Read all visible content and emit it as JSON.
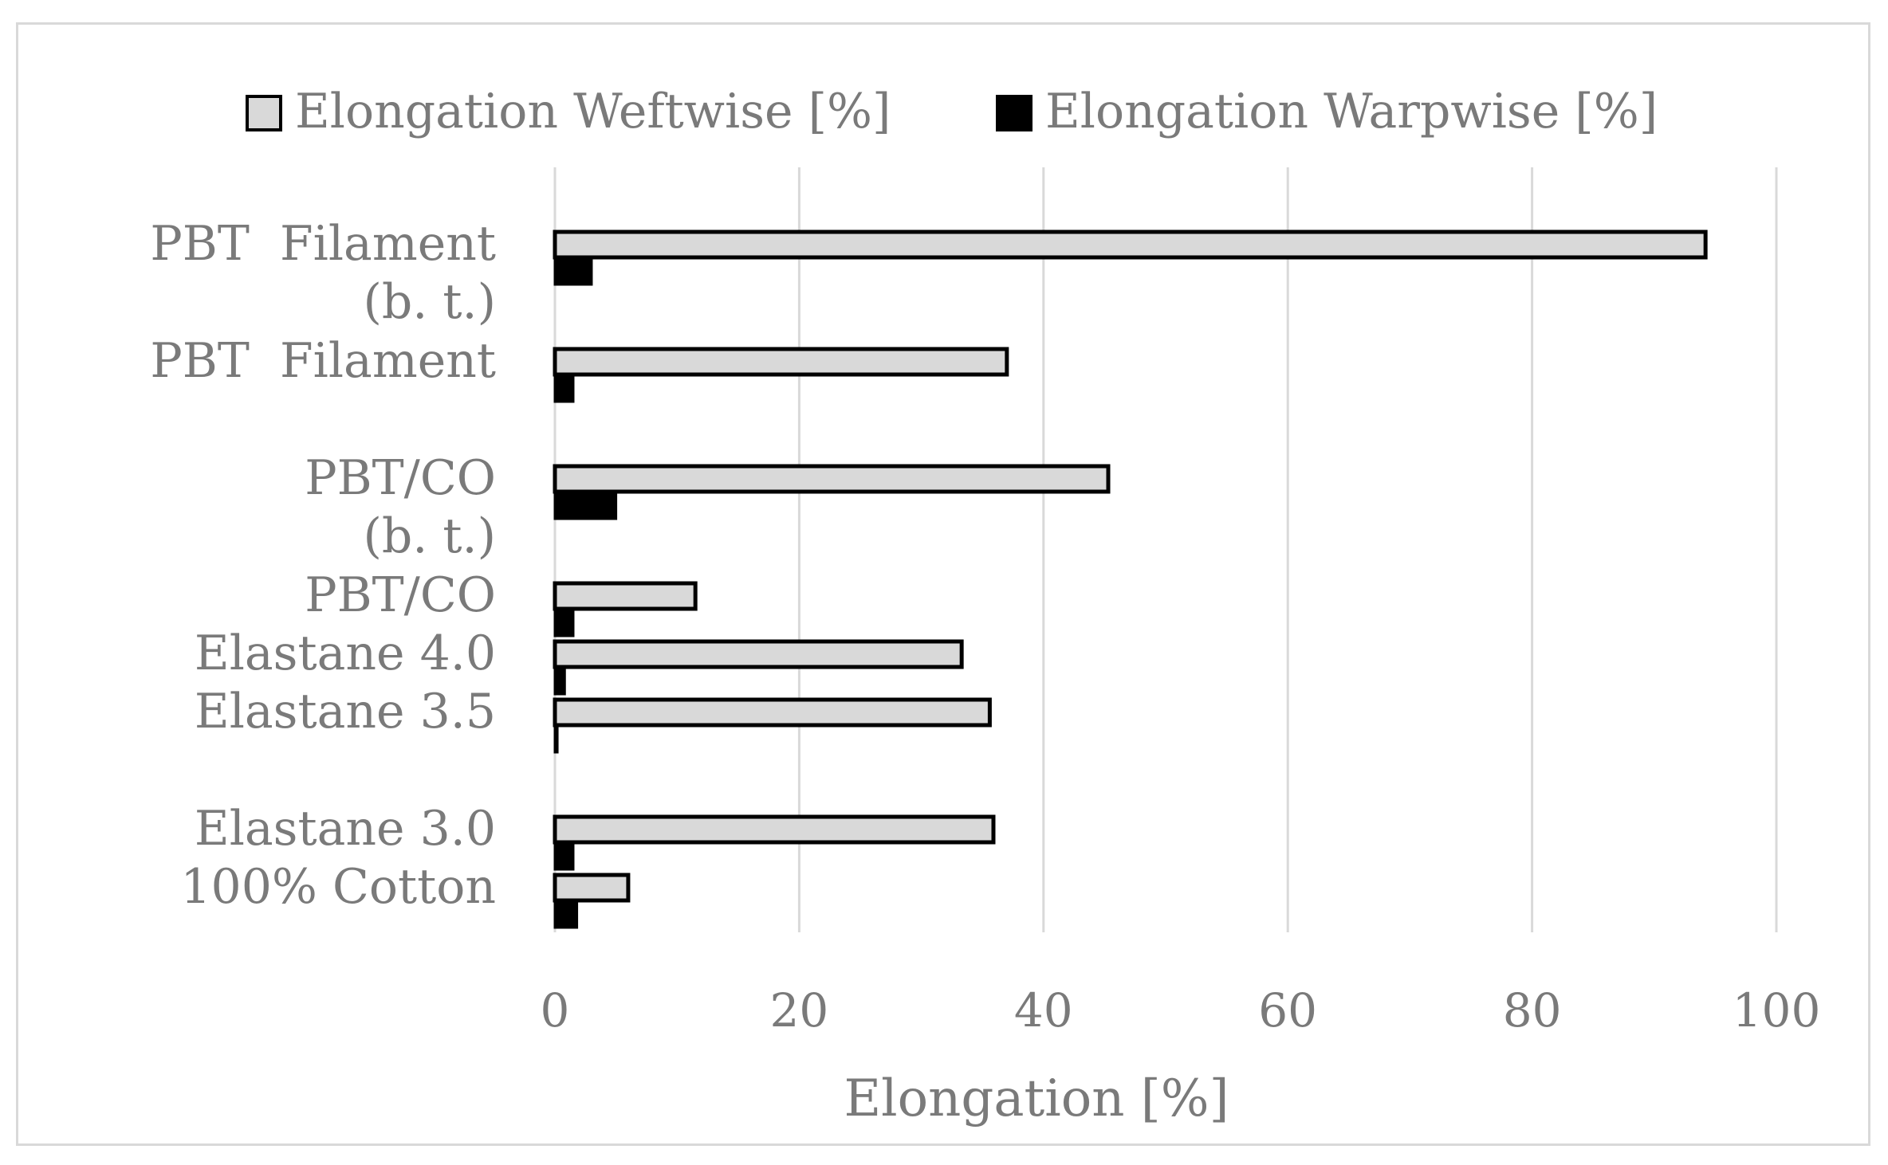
{
  "chart_data": {
    "type": "bar",
    "orientation": "horizontal",
    "categories": [
      "PBT  Filament (b. t.)",
      "PBT  Filament",
      "PBT/CO (b. t.)",
      "PBT/CO",
      "Elastane 4.0",
      "Elastane 3.5",
      "Elastane 3.0",
      "100% Cotton"
    ],
    "category_lines": [
      [
        "PBT  Filament",
        "(b. t.)"
      ],
      [
        "PBT  Filament"
      ],
      [
        "PBT/CO",
        "(b. t.)"
      ],
      [
        "PBT/CO"
      ],
      [
        "Elastane 4.0"
      ],
      [
        "Elastane 3.5"
      ],
      [
        "Elastane 3.0"
      ],
      [
        "100% Cotton"
      ]
    ],
    "series": [
      {
        "name": "Elongation Weftwise [%]",
        "color": "#d9d9d9",
        "values": [
          94.2,
          37.0,
          45.3,
          11.5,
          33.3,
          35.6,
          35.9,
          6.0
        ]
      },
      {
        "name": "Elongation Warpwise [%]",
        "color": "#000000",
        "values": [
          3.0,
          1.5,
          5.0,
          1.5,
          0.8,
          0.2,
          1.5,
          1.8
        ]
      }
    ],
    "xlabel": "Elongation [%]",
    "ylabel": "",
    "xlim": [
      0,
      100
    ],
    "xticks": [
      0,
      20,
      40,
      60,
      80,
      100
    ],
    "grid": "vertical",
    "legend": "top"
  }
}
